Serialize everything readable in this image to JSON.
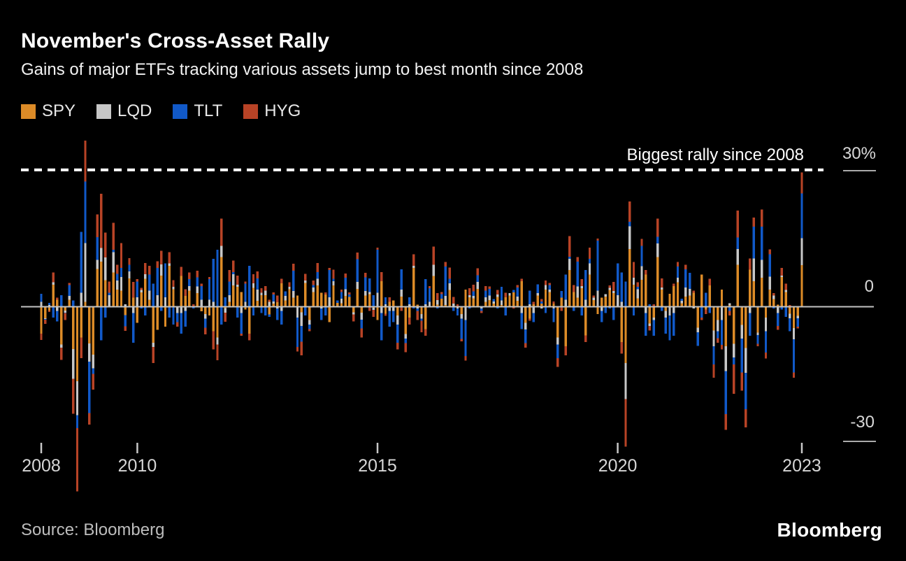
{
  "header": {
    "title": "November's Cross-Asset Rally",
    "subtitle": "Gains of major ETFs tracking various assets jump to best month since 2008"
  },
  "legend": [
    {
      "label": "SPY",
      "color": "#DC8B27"
    },
    {
      "label": "LQD",
      "color": "#C7C7C7"
    },
    {
      "label": "TLT",
      "color": "#1159C8"
    },
    {
      "label": "HYG",
      "color": "#B84326"
    }
  ],
  "annotation": {
    "text": "Biggest rally since 2008",
    "value": 30
  },
  "axes": {
    "y_unit": "%",
    "y_ticks": [
      {
        "label": "30%",
        "value": 30
      },
      {
        "label": "0",
        "value": 0
      },
      {
        "label": "-30",
        "value": -30
      }
    ],
    "x_ticks": [
      {
        "label": "2008",
        "month_index": 0
      },
      {
        "label": "2010",
        "month_index": 24
      },
      {
        "label": "2015",
        "month_index": 84
      },
      {
        "label": "2020",
        "month_index": 144
      },
      {
        "label": "2023",
        "month_index": 190
      }
    ]
  },
  "footer": {
    "source": "Source: Bloomberg",
    "brand": "Bloomberg"
  },
  "chart_data": {
    "type": "bar",
    "stacked": true,
    "frequency": "monthly",
    "x_start": "2008-01",
    "x_end": "2023-11",
    "unit": "%",
    "ylim": [
      -45,
      40
    ],
    "grid": false,
    "legend_position": "top-left",
    "baseline_value": 0,
    "dashed_line_value": 30,
    "dashed_line_label": "Biggest rally since 2008",
    "series": [
      {
        "name": "SPY",
        "color": "#DC8B27",
        "values": [
          -6.0,
          -2.6,
          -0.9,
          4.8,
          1.5,
          -8.4,
          -0.9,
          1.5,
          -9.4,
          -16.5,
          -6.9,
          1.0,
          -8.2,
          -10.7,
          8.3,
          9.9,
          5.8,
          -0.1,
          7.5,
          3.7,
          3.5,
          -1.9,
          6.2,
          1.9,
          -3.6,
          3.1,
          6.1,
          1.5,
          -8.0,
          -5.2,
          6.8,
          -4.5,
          9.0,
          3.8,
          0.0,
          6.7,
          2.3,
          3.5,
          0.0,
          2.9,
          -1.1,
          -1.7,
          -2.0,
          -5.5,
          -6.9,
          10.9,
          -0.4,
          1.0,
          4.6,
          4.3,
          3.2,
          -0.7,
          -6.0,
          4.1,
          1.2,
          2.5,
          2.5,
          -1.8,
          0.6,
          0.9,
          5.1,
          1.3,
          3.8,
          1.9,
          2.4,
          -1.3,
          5.2,
          -3.0,
          3.2,
          4.6,
          3.0,
          2.6,
          -3.5,
          4.6,
          0.8,
          0.7,
          2.3,
          2.1,
          -1.3,
          3.9,
          -1.4,
          2.4,
          2.7,
          -0.3,
          -3.0,
          5.6,
          -1.6,
          1.0,
          1.3,
          -2.0,
          2.2,
          -6.1,
          -2.5,
          8.5,
          0.4,
          -1.7,
          -5.0,
          -0.1,
          6.7,
          0.4,
          1.7,
          0.3,
          3.6,
          0.1,
          0.0,
          -1.7,
          3.7,
          2.0,
          1.8,
          3.9,
          0.1,
          1.0,
          1.4,
          0.6,
          2.1,
          0.3,
          2.0,
          2.4,
          3.1,
          1.2,
          5.6,
          -3.6,
          -2.7,
          0.5,
          2.4,
          0.6,
          3.7,
          3.2,
          0.6,
          -6.9,
          1.9,
          -8.8,
          8.0,
          3.2,
          1.9,
          4.0,
          -6.4,
          7.0,
          1.4,
          -1.7,
          1.9,
          2.2,
          3.6,
          2.9,
          0.0,
          -7.9,
          -12.5,
          12.7,
          4.8,
          1.8,
          5.9,
          7.0,
          -3.8,
          -2.5,
          10.9,
          3.7,
          -1.0,
          2.8,
          4.5,
          5.3,
          0.7,
          2.2,
          2.4,
          3.0,
          -4.7,
          7.0,
          -0.7,
          4.6,
          -5.3,
          -3.0,
          3.7,
          -8.8,
          0.2,
          -8.3,
          9.2,
          -4.1,
          -9.2,
          8.1,
          5.6,
          -5.8,
          6.3,
          -2.5,
          3.7,
          1.6,
          0.4,
          6.5,
          3.2,
          -1.6,
          -4.8,
          -2.1,
          9.1
        ]
      },
      {
        "name": "LQD",
        "color": "#C7C7C7",
        "values": [
          1.0,
          -0.2,
          0.3,
          0.5,
          -1.0,
          -0.7,
          -0.5,
          0.8,
          -6.6,
          -7.5,
          3.0,
          13.0,
          -4.0,
          -3.0,
          2.0,
          3.0,
          5.0,
          2.5,
          4.5,
          2.0,
          3.0,
          0.5,
          1.5,
          -1.5,
          2.0,
          0.5,
          1.0,
          2.0,
          -1.0,
          2.5,
          2.5,
          2.0,
          0.5,
          0.5,
          -1.5,
          -1.5,
          -1.0,
          1.0,
          0.0,
          1.5,
          1.5,
          -1.0,
          1.5,
          1.0,
          -1.5,
          2.5,
          -1.0,
          1.5,
          2.5,
          0.5,
          -1.5,
          1.0,
          0.0,
          1.0,
          2.5,
          0.5,
          1.0,
          1.0,
          0.5,
          -0.5,
          -1.0,
          1.0,
          0.5,
          1.5,
          -2.5,
          -3.0,
          0.5,
          -1.0,
          1.0,
          1.5,
          -0.5,
          0.0,
          2.0,
          1.0,
          0.0,
          1.0,
          1.5,
          0.0,
          -0.5,
          1.5,
          -1.5,
          1.0,
          0.5,
          -0.5,
          3.0,
          -1.5,
          0.5,
          -1.0,
          -1.0,
          -2.0,
          1.5,
          -1.0,
          0.5,
          0.5,
          -0.5,
          -1.0,
          0.5,
          1.0,
          2.5,
          1.0,
          0.0,
          2.0,
          1.5,
          0.5,
          -0.5,
          -1.0,
          -3.0,
          0.5,
          0.5,
          1.5,
          -0.5,
          1.0,
          1.0,
          0.5,
          0.5,
          1.0,
          0.0,
          0.5,
          0.0,
          1.0,
          -1.5,
          -1.5,
          0.5,
          -1.5,
          0.5,
          -0.5,
          1.0,
          0.5,
          -0.5,
          -1.5,
          0.0,
          1.5,
          2.5,
          0.0,
          2.5,
          0.5,
          1.5,
          2.5,
          0.5,
          3.5,
          -1.0,
          0.5,
          0.5,
          0.5,
          2.5,
          1.0,
          -8.0,
          5.0,
          1.5,
          2.0,
          3.0,
          -1.5,
          -0.5,
          -0.5,
          3.0,
          0.5,
          -1.5,
          -2.0,
          -1.5,
          1.0,
          0.5,
          2.0,
          1.5,
          -0.5,
          -1.0,
          0.0,
          0.0,
          0.0,
          -3.5,
          -2.5,
          -3.0,
          -5.5,
          0.5,
          -3.0,
          3.5,
          -3.0,
          -5.5,
          -1.5,
          5.0,
          -0.5,
          4.0,
          -3.0,
          2.9,
          0.8,
          -1.5,
          0.3,
          0.4,
          -1.0,
          -2.5,
          -0.5,
          6.0
        ]
      },
      {
        "name": "TLT",
        "color": "#1159C8",
        "values": [
          1.8,
          -0.1,
          0.5,
          -2.5,
          -2.3,
          2.5,
          -0.1,
          2.4,
          1.3,
          -2.9,
          13.5,
          13.6,
          -11.4,
          -1.2,
          5.0,
          -7.5,
          -2.5,
          0.5,
          0.5,
          1.5,
          2.0,
          -2.5,
          1.5,
          -6.5,
          3.5,
          -0.5,
          -2.0,
          3.5,
          5.0,
          6.0,
          -1.0,
          7.5,
          -2.5,
          -4.0,
          -2.0,
          -4.5,
          -3.5,
          1.5,
          -0.5,
          2.0,
          3.0,
          -2.0,
          4.5,
          9.5,
          12.5,
          -4.0,
          2.0,
          3.0,
          0.5,
          -2.5,
          -4.5,
          4.0,
          9.0,
          -2.0,
          2.5,
          -1.5,
          -2.0,
          -0.5,
          1.5,
          -2.5,
          -3.0,
          1.0,
          0.0,
          4.5,
          -6.5,
          -3.5,
          -2.0,
          -1.0,
          0.5,
          1.5,
          -2.5,
          -2.0,
          6.0,
          0.5,
          0.5,
          1.5,
          2.5,
          0.5,
          0.0,
          5.0,
          -2.0,
          3.0,
          3.0,
          2.5,
          9.5,
          -6.0,
          1.5,
          -3.5,
          -2.5,
          -4.0,
          4.5,
          -1.0,
          1.5,
          -0.5,
          -0.5,
          -0.5,
          5.5,
          3.0,
          0.0,
          -0.5,
          1.0,
          6.5,
          1.0,
          -1.0,
          -1.5,
          -4.5,
          -8.0,
          -0.5,
          1.0,
          1.5,
          -0.5,
          1.5,
          1.5,
          0.5,
          -0.5,
          3.0,
          -2.0,
          0.0,
          0.5,
          2.0,
          -3.5,
          -3.0,
          3.0,
          -2.0,
          2.0,
          0.5,
          -1.5,
          1.0,
          -3.0,
          -3.0,
          1.5,
          5.5,
          0.5,
          -1.0,
          5.5,
          -2.0,
          6.5,
          1.0,
          0.0,
          11.0,
          -2.5,
          -1.5,
          -0.5,
          -3.0,
          7.0,
          6.5,
          5.5,
          1.0,
          -2.0,
          0.5,
          4.5,
          -5.0,
          0.5,
          -3.5,
          1.5,
          -1.0,
          -3.5,
          -5.5,
          -5.0,
          2.5,
          0.5,
          4.0,
          3.5,
          0.0,
          -3.0,
          -2.5,
          3.0,
          -1.5,
          -4.0,
          -1.5,
          -5.5,
          -9.5,
          -1.0,
          -1.5,
          2.5,
          -7.5,
          -8.0,
          -5.0,
          7.0,
          -2.0,
          7.3,
          -4.7,
          4.9,
          -0.5,
          -2.8,
          -0.7,
          -2.3,
          -2.9,
          -7.3,
          -1.9,
          9.9
        ]
      },
      {
        "name": "HYG",
        "color": "#B84326",
        "values": [
          -1.4,
          -1.0,
          -0.3,
          2.2,
          0.4,
          -2.7,
          -1.5,
          0.5,
          -7.7,
          -14.0,
          -4.5,
          9.0,
          -2.5,
          -3.5,
          5.0,
          12.0,
          5.5,
          2.5,
          6.0,
          2.0,
          5.5,
          -1.0,
          1.5,
          3.5,
          0.5,
          0.5,
          2.5,
          2.0,
          -3.5,
          1.5,
          3.0,
          0.0,
          2.5,
          1.5,
          -1.0,
          2.0,
          1.5,
          1.5,
          0.5,
          1.5,
          0.5,
          -1.5,
          0.5,
          -4.0,
          -3.5,
          6.0,
          -2.0,
          2.5,
          2.5,
          2.0,
          -0.5,
          0.5,
          -1.5,
          2.0,
          1.5,
          1.0,
          1.0,
          0.5,
          0.5,
          1.5,
          1.0,
          0.0,
          1.0,
          1.5,
          -1.0,
          -3.0,
          1.5,
          -0.5,
          1.0,
          2.0,
          0.0,
          0.5,
          0.5,
          2.0,
          0.0,
          0.5,
          1.0,
          0.5,
          -1.5,
          1.5,
          -2.0,
          1.0,
          -1.0,
          -1.5,
          0.5,
          2.0,
          -0.5,
          1.0,
          0.0,
          -1.5,
          -1.0,
          -2.0,
          -1.5,
          2.5,
          -2.0,
          -2.5,
          -1.5,
          0.5,
          4.0,
          1.5,
          0.5,
          1.0,
          2.5,
          1.5,
          0.5,
          -0.5,
          -1.0,
          1.5,
          1.5,
          1.5,
          -0.5,
          1.0,
          0.5,
          0.0,
          1.0,
          0.0,
          1.0,
          0.0,
          -0.5,
          0.5,
          0.5,
          -1.0,
          -0.5,
          0.5,
          0.0,
          0.5,
          1.0,
          0.5,
          0.5,
          -2.0,
          -1.0,
          -2.0,
          4.5,
          1.5,
          1.0,
          1.5,
          -1.5,
          2.5,
          0.5,
          0.5,
          0.0,
          0.0,
          0.5,
          2.0,
          0.0,
          -2.5,
          -10.5,
          4.5,
          3.5,
          1.0,
          1.5,
          1.0,
          -1.0,
          0.5,
          4.0,
          2.0,
          0.0,
          0.0,
          0.5,
          1.0,
          0.0,
          1.0,
          0.0,
          0.5,
          0.0,
          -0.5,
          -1.0,
          1.5,
          -3.0,
          -1.0,
          -1.0,
          -3.5,
          -1.0,
          -6.5,
          6.0,
          -4.0,
          -4.0,
          2.5,
          2.0,
          -0.5,
          3.8,
          -1.3,
          1.1,
          0.5,
          -0.9,
          1.7,
          1.4,
          0.3,
          -1.2,
          -0.4,
          4.6
        ]
      }
    ]
  }
}
